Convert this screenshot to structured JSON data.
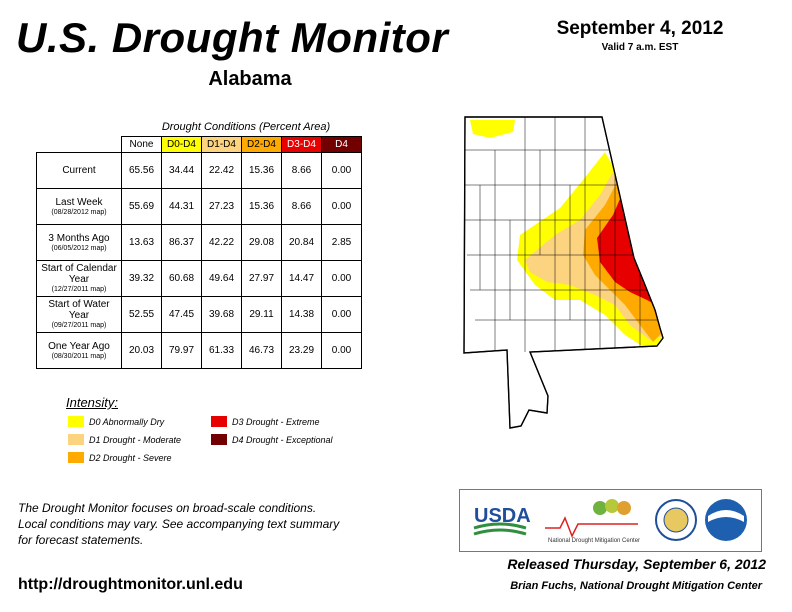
{
  "header": {
    "title": "U.S. Drought Monitor",
    "state": "Alabama",
    "date": "September 4, 2012",
    "valid": "Valid 7 a.m. EST"
  },
  "table": {
    "caption": "Drought Conditions (Percent Area)",
    "columns": [
      "None",
      "D0-D4",
      "D1-D4",
      "D2-D4",
      "D3-D4",
      "D4"
    ],
    "rows": [
      {
        "label": "Current",
        "sublabel": "",
        "values": [
          "65.56",
          "34.44",
          "22.42",
          "15.36",
          "8.66",
          "0.00"
        ]
      },
      {
        "label": "Last Week",
        "sublabel": "(08/28/2012 map)",
        "values": [
          "55.69",
          "44.31",
          "27.23",
          "15.36",
          "8.66",
          "0.00"
        ]
      },
      {
        "label": "3 Months Ago",
        "sublabel": "(06/05/2012 map)",
        "values": [
          "13.63",
          "86.37",
          "42.22",
          "29.08",
          "20.84",
          "2.85"
        ]
      },
      {
        "label": "Start of Calendar Year",
        "sublabel": "(12/27/2011 map)",
        "values": [
          "39.32",
          "60.68",
          "49.64",
          "27.97",
          "14.47",
          "0.00"
        ]
      },
      {
        "label": "Start of Water Year",
        "sublabel": "(09/27/2011 map)",
        "values": [
          "52.55",
          "47.45",
          "39.68",
          "29.11",
          "14.38",
          "0.00"
        ]
      },
      {
        "label": "One Year Ago",
        "sublabel": "(08/30/2011 map)",
        "values": [
          "20.03",
          "79.97",
          "61.33",
          "46.73",
          "23.29",
          "0.00"
        ]
      }
    ]
  },
  "legend": {
    "title": "Intensity:",
    "items": [
      {
        "label": "D0 Abnormally Dry",
        "color": "#ffff00"
      },
      {
        "label": "D1 Drought - Moderate",
        "color": "#fcd37f"
      },
      {
        "label": "D2 Drought - Severe",
        "color": "#ffaa00"
      },
      {
        "label": "D3 Drought - Extreme",
        "color": "#e60000"
      },
      {
        "label": "D4 Drought - Exceptional",
        "color": "#730000"
      }
    ]
  },
  "footer": {
    "note_line1": "The Drought Monitor focuses on broad-scale conditions.",
    "note_line2": "Local conditions may vary. See accompanying text summary",
    "note_line3": "for forecast statements.",
    "url": "http://droughtmonitor.unl.edu",
    "released": "Released Thursday, September 6, 2012",
    "author": "Brian Fuchs, National Drought Mitigation Center"
  },
  "logos": {
    "usda": "USDA",
    "ndmc": "National Drought Mitigation Center"
  },
  "colors": {
    "none": "#ffffff",
    "d0": "#ffff00",
    "d1": "#fcd37f",
    "d2": "#ffaa00",
    "d3": "#e60000",
    "d4": "#730000",
    "usda_blue": "#1f4e9a",
    "usda_green": "#2f8f3f"
  }
}
